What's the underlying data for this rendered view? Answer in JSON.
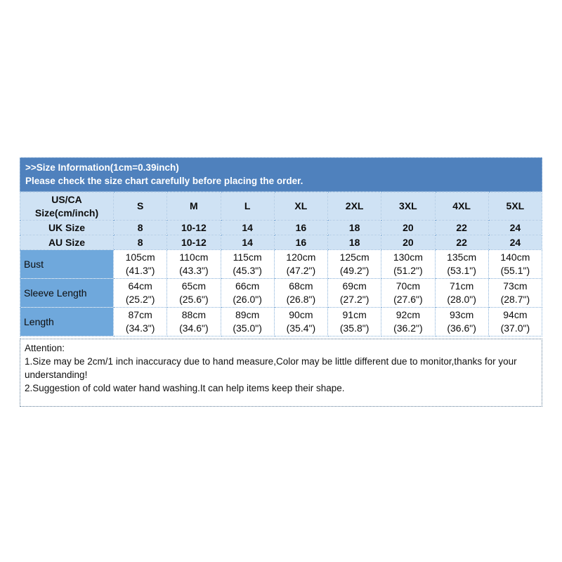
{
  "banner": {
    "title": ">>Size Information(1cm=0.39inch)",
    "subtitle": "Please check the size chart carefully before placing the order."
  },
  "size_table": {
    "corner_label": [
      "US/CA",
      "Size(cm/inch)"
    ],
    "size_headers": [
      "S",
      "M",
      "L",
      "XL",
      "2XL",
      "3XL",
      "4XL",
      "5XL"
    ],
    "uk_size": {
      "label": "UK Size",
      "values": [
        "8",
        "10-12",
        "14",
        "16",
        "18",
        "20",
        "22",
        "24"
      ]
    },
    "au_size": {
      "label": "AU Size",
      "values": [
        "8",
        "10-12",
        "14",
        "16",
        "18",
        "20",
        "22",
        "24"
      ]
    },
    "measurements": [
      {
        "label": "Bust",
        "cm": [
          "105cm",
          "110cm",
          "115cm",
          "120cm",
          "125cm",
          "130cm",
          "135cm",
          "140cm"
        ],
        "inch": [
          "(41.3\")",
          "(43.3\")",
          "(45.3\")",
          "(47.2\")",
          "(49.2\")",
          "(51.2\")",
          "(53.1\")",
          "(55.1\")"
        ]
      },
      {
        "label": "Sleeve Length",
        "cm": [
          "64cm",
          "65cm",
          "66cm",
          "68cm",
          "69cm",
          "70cm",
          "71cm",
          "73cm"
        ],
        "inch": [
          "(25.2\")",
          "(25.6\")",
          "(26.0\")",
          "(26.8\")",
          "(27.2\")",
          "(27.6\")",
          "(28.0\")",
          "(28.7\")"
        ]
      },
      {
        "label": "Length",
        "cm": [
          "87cm",
          "88cm",
          "89cm",
          "90cm",
          "91cm",
          "92cm",
          "93cm",
          "94cm"
        ],
        "inch": [
          "(34.3\")",
          "(34.6\")",
          "(35.0\")",
          "(35.4\")",
          "(35.8\")",
          "(36.2\")",
          "(36.6\")",
          "(37.0\")"
        ]
      }
    ]
  },
  "attention": {
    "title": "Attention:",
    "lines": [
      "1.Size may be 2cm/1 inch inaccuracy due to hand measure,Color may be little different due to monitor,thanks for your understanding!",
      "2.Suggestion of cold water hand washing.It can help items keep their shape."
    ]
  },
  "colors": {
    "banner_bg": "#4f81bd",
    "header_bg": "#cfe2f4",
    "label_column_bg": "#6fa8dc",
    "table_border": "#85afd8",
    "attention_border": "#5a7894"
  }
}
